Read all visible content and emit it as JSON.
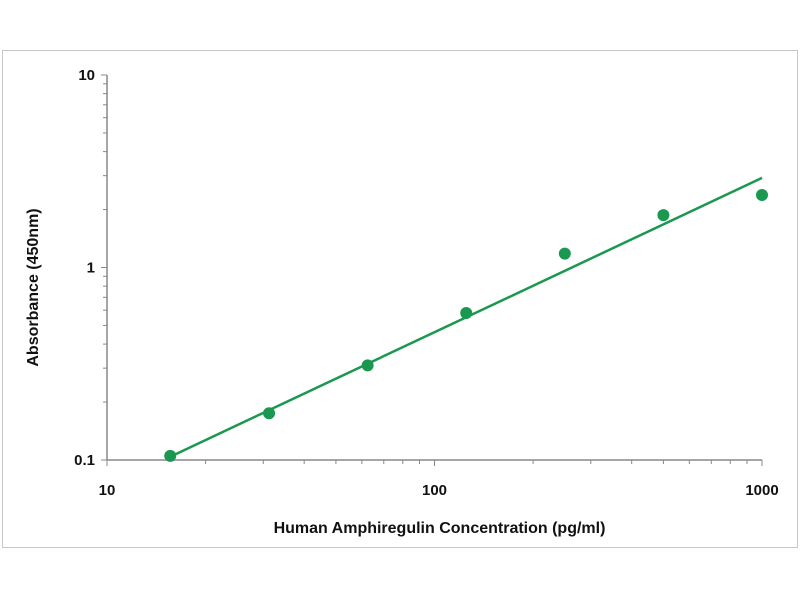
{
  "chart_data": {
    "type": "scatter",
    "title": "",
    "xlabel": "Human Amphiregulin Concentration (pg/ml)",
    "ylabel": "Absorbance (450nm)",
    "x_scale": "log",
    "y_scale": "log",
    "xlim": [
      10,
      1000
    ],
    "ylim": [
      0.1,
      10
    ],
    "x_ticks": [
      10,
      100,
      1000
    ],
    "x_tick_labels": [
      "10",
      "100",
      "1000"
    ],
    "y_ticks": [
      0.1,
      1,
      10
    ],
    "y_tick_labels": [
      "0.1",
      "1",
      "10"
    ],
    "grid": false,
    "legend": "none",
    "series": [
      {
        "points": [
          {
            "x": 15.6,
            "y": 0.105
          },
          {
            "x": 31.25,
            "y": 0.175
          },
          {
            "x": 62.5,
            "y": 0.31
          },
          {
            "x": 125,
            "y": 0.58
          },
          {
            "x": 250,
            "y": 1.18
          },
          {
            "x": 500,
            "y": 1.87
          },
          {
            "x": 1000,
            "y": 2.38
          }
        ],
        "color": "#1a9850"
      }
    ],
    "trendline": {
      "type": "power",
      "from": {
        "x": 15.6,
        "y": 0.104
      },
      "to": {
        "x": 1000,
        "y": 2.92
      },
      "color": "#1a9850"
    }
  }
}
